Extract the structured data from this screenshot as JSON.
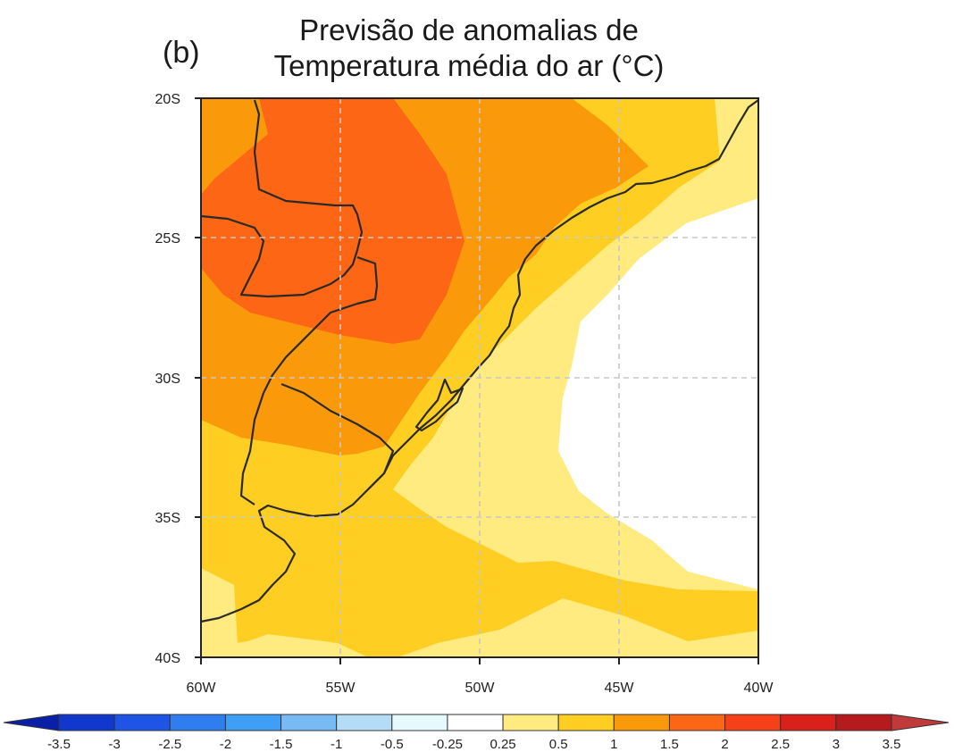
{
  "panel_label": "(b)",
  "title_line1": "Previsão de anomalias de",
  "title_line2": "Temperatura média do ar (°C)",
  "chart_data": {
    "type": "contour-map",
    "y_ticks": [
      "20S",
      "25S",
      "30S",
      "35S",
      "40S"
    ],
    "x_ticks": [
      "60W",
      "55W",
      "50W",
      "45W",
      "40W"
    ],
    "extent": {
      "lon": [
        -60,
        -40
      ],
      "lat": [
        -40,
        -20
      ]
    },
    "grid": "dashed",
    "colorbar": {
      "labels": [
        "-3.5",
        "-3",
        "-2.5",
        "-2",
        "-1.5",
        "-1",
        "-0.5",
        "-0.25",
        "0.25",
        "0.5",
        "1",
        "1.5",
        "2",
        "2.5",
        "3",
        "3.5"
      ],
      "colors": [
        "#0a1fa8",
        "#1038cc",
        "#1f55e6",
        "#2f7ef0",
        "#3f9ef5",
        "#78baf3",
        "#b4dcf7",
        "#e6f9fd",
        "#ffffff",
        "#ffeb80",
        "#fece22",
        "#fa9a0b",
        "#fc6614",
        "#f6401a",
        "#d9201b",
        "#b51a1c",
        "#c13a3a"
      ]
    }
  },
  "colors": {
    "anomaly_025_05": "#ffeb80",
    "anomaly_05_1": "#fece22",
    "anomaly_1_15": "#fa9a0b",
    "anomaly_15_2": "#fc6614"
  }
}
